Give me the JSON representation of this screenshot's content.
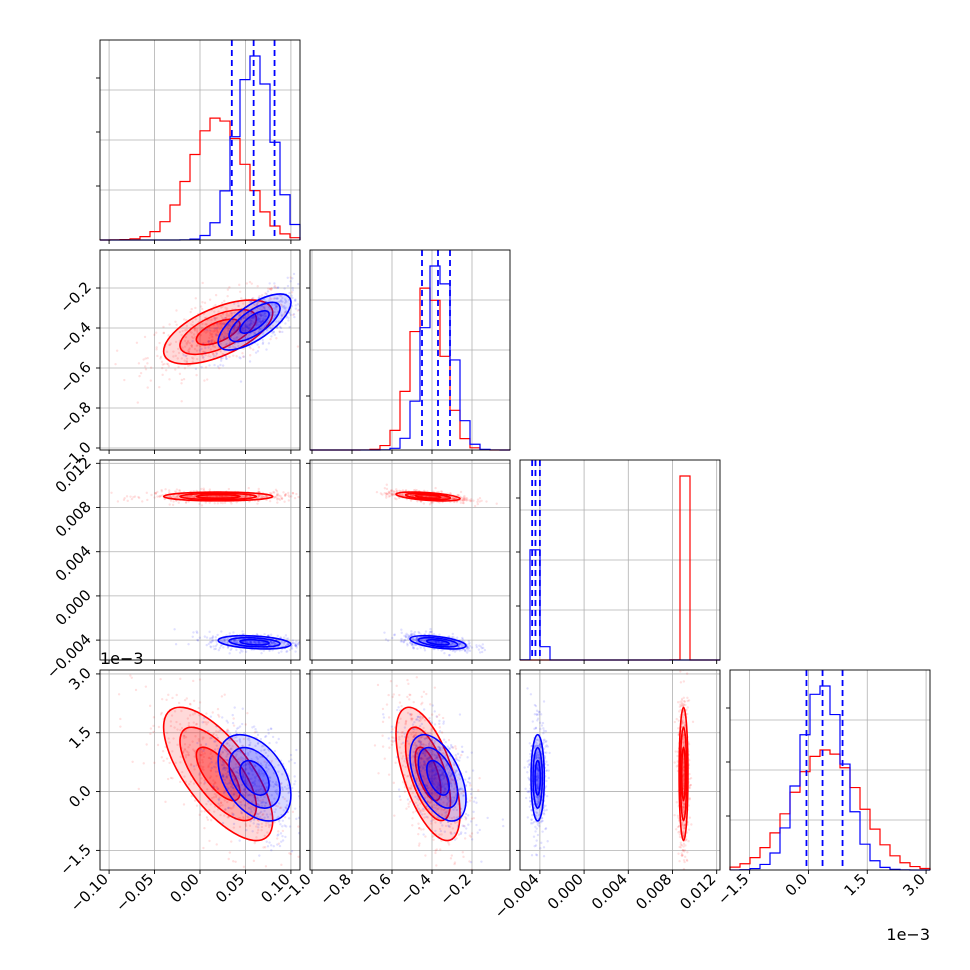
{
  "colors": {
    "series_red": "#ff0000",
    "series_blue": "#0000ff",
    "grid": "#b0b0b0",
    "axes": "#000000"
  },
  "offsets": {
    "p3": "1e−3",
    "p3_bottom": "1e−3"
  },
  "chart_data": {
    "type": "corner",
    "parameters": [
      {
        "ticks": [
          "−0.10",
          "−0.05",
          "0.00",
          "0.05",
          "0.10"
        ],
        "tick_values": [
          -0.1,
          -0.05,
          0.0,
          0.05,
          0.1
        ],
        "range": [
          -0.11,
          0.11
        ]
      },
      {
        "ticks": [
          "−1.0",
          "−0.8",
          "−0.6",
          "−0.4",
          "−0.2"
        ],
        "tick_values": [
          -1.0,
          -0.8,
          -0.6,
          -0.4,
          -0.2
        ],
        "range": [
          -1.01,
          -0.01
        ]
      },
      {
        "ticks": [
          "−0.004",
          "0.000",
          "0.004",
          "0.008",
          "0.012"
        ],
        "tick_values": [
          -0.004,
          0.0,
          0.004,
          0.008,
          0.012
        ],
        "range": [
          -0.0058,
          0.0123
        ]
      },
      {
        "ticks": [
          "−1.5",
          "0.0",
          "1.5",
          "3.0"
        ],
        "tick_values": [
          -1.5,
          0.0,
          1.5,
          3.0
        ],
        "range": [
          -2.0,
          3.1
        ]
      }
    ],
    "series": [
      {
        "color": "#ff0000",
        "means": [
          0.02,
          -0.42,
          0.009,
          0.45
        ],
        "sigmas": [
          0.03,
          0.08,
          0.0002,
          0.85
        ],
        "corr": [
          [
            1,
            0.6,
            0.0,
            -0.7
          ],
          [
            0.6,
            1,
            -0.5,
            -0.6
          ],
          [
            0.0,
            -0.5,
            1,
            0.0
          ],
          [
            -0.7,
            -0.6,
            0.0,
            1
          ]
        ]
      },
      {
        "color": "#0000ff",
        "means": [
          0.06,
          -0.37,
          -0.0042,
          0.35
        ],
        "sigmas": [
          0.02,
          0.07,
          0.0003,
          0.55
        ],
        "corr": [
          [
            1,
            0.7,
            -0.3,
            -0.4
          ],
          [
            0.7,
            1,
            -0.5,
            -0.5
          ],
          [
            -0.3,
            -0.5,
            1,
            0.0
          ],
          [
            -0.4,
            -0.5,
            0.0,
            1
          ]
        ]
      }
    ],
    "quantiles": {
      "color": "#0000ff",
      "style": "dashed",
      "values": [
        [
          0.035,
          0.059,
          0.082
        ],
        [
          -0.45,
          -0.37,
          -0.31
        ],
        [
          -0.0047,
          -0.0044,
          -0.004
        ],
        [
          -0.05,
          0.36,
          0.87
        ]
      ]
    },
    "grid": true
  }
}
